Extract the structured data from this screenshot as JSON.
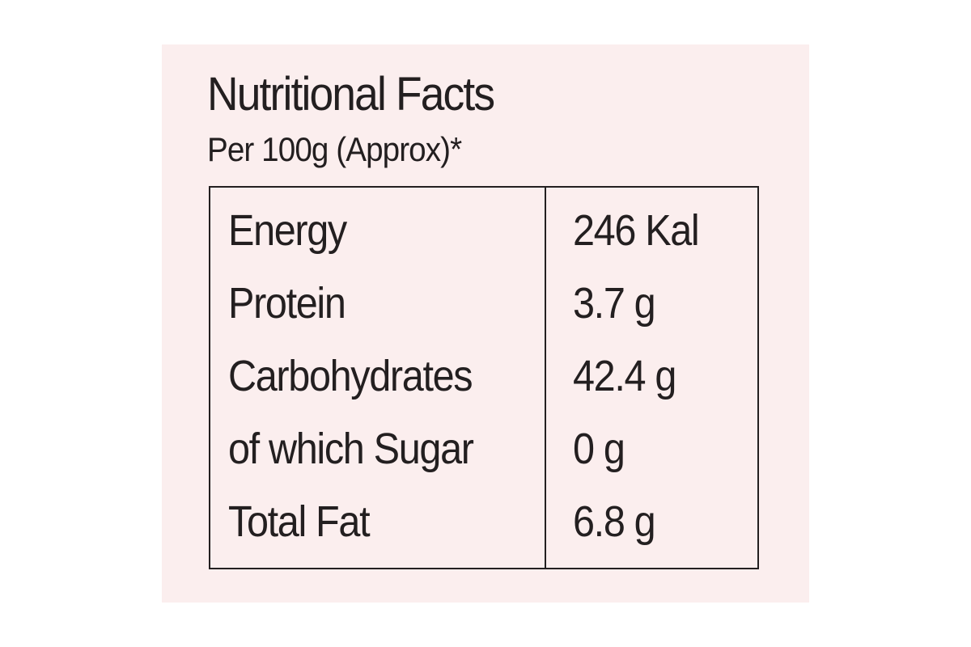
{
  "header": {
    "title": "Nutritional Facts",
    "subtitle": "Per 100g (Approx)*"
  },
  "table": {
    "rows": [
      [
        "Energy",
        "246 Kal"
      ],
      [
        "Protein",
        "3.7 g"
      ],
      [
        "Carbohydrates",
        "42.4 g"
      ],
      [
        "of which Sugar",
        "0 g"
      ],
      [
        "Total Fat",
        "6.8 g"
      ]
    ]
  }
}
